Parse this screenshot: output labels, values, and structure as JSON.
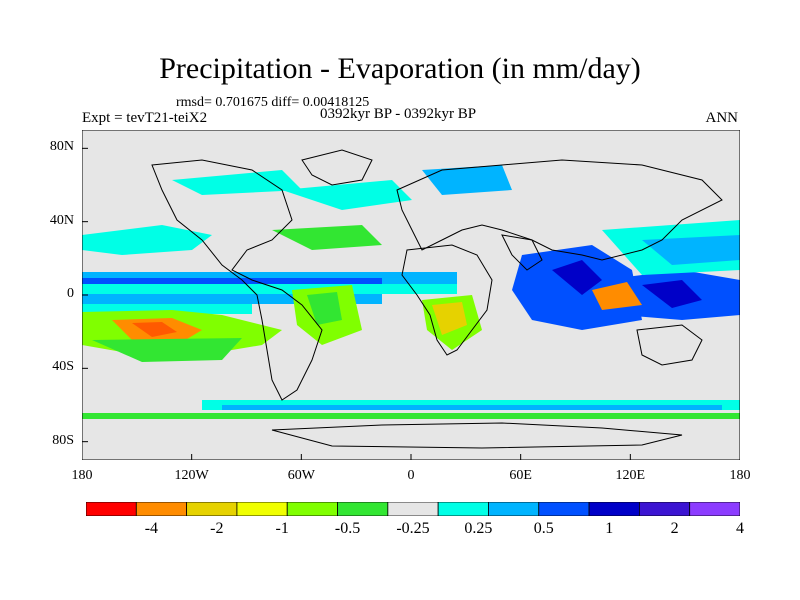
{
  "header": {
    "title": "Precipitation - Evaporation (in mm/day)",
    "stats": "rmsd= 0.701675 diff= 0.00418125",
    "experiment": "Expt = tevT21-teiX2",
    "period": "0392kyr BP - 0392kyr BP",
    "season": "ANN"
  },
  "axes": {
    "y_ticks": [
      {
        "label": "80N",
        "lat": 80
      },
      {
        "label": "40N",
        "lat": 40
      },
      {
        "label": "0",
        "lat": 0
      },
      {
        "label": "40S",
        "lat": -40
      },
      {
        "label": "80S",
        "lat": -80
      }
    ],
    "x_ticks": [
      {
        "label": "180",
        "lon": -180
      },
      {
        "label": "120W",
        "lon": -120
      },
      {
        "label": "60W",
        "lon": -60
      },
      {
        "label": "0",
        "lon": 0
      },
      {
        "label": "60E",
        "lon": 60
      },
      {
        "label": "120E",
        "lon": 120
      },
      {
        "label": "180",
        "lon": 180
      }
    ],
    "lon_range": [
      -180,
      180
    ],
    "lat_range": [
      -90,
      90
    ]
  },
  "colorbar": {
    "colors": [
      "#ff0000",
      "#ff8c00",
      "#e6d200",
      "#f0ff00",
      "#80ff00",
      "#32e632",
      "#e6e6e6",
      "#00ffe6",
      "#00b4ff",
      "#0050ff",
      "#0000c8",
      "#3c14d2",
      "#8c3cff"
    ],
    "labels": [
      "-4",
      "-2",
      "-1",
      "-0.5",
      "-0.25",
      "0.25",
      "0.5",
      "1",
      "2",
      "4"
    ]
  }
}
